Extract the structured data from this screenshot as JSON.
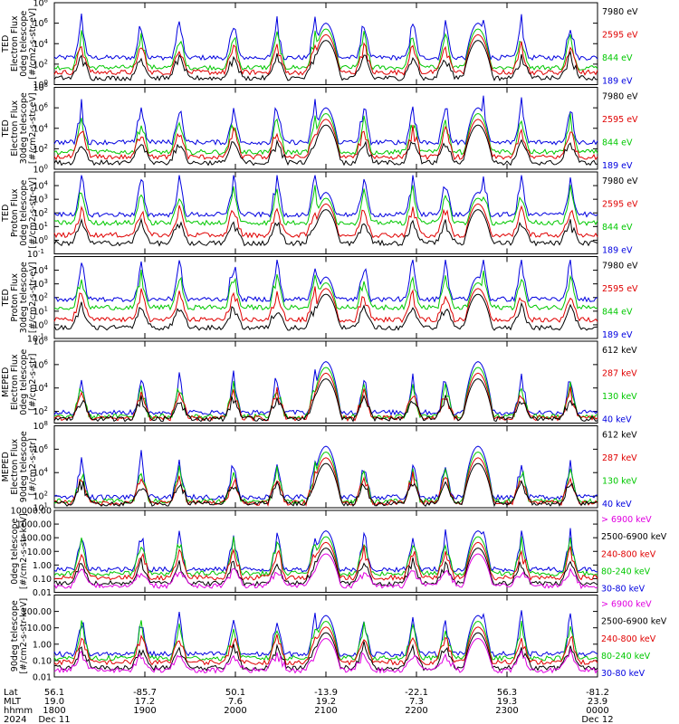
{
  "chart_data": [
    {
      "type": "line",
      "ylabel": [
        "TED",
        "Electron Flux",
        "0deg telescope",
        "[#/cm2-s-str-eV]"
      ],
      "yscale": "log",
      "ylim": [
        1,
        100000000
      ],
      "yticks": [
        "10^0",
        "10^2",
        "10^4",
        "10^6",
        "10^8"
      ],
      "series": [
        {
          "name": "7980 eV",
          "color": "#000000"
        },
        {
          "name": "2595 eV",
          "color": "#e00000"
        },
        {
          "name": "844 eV",
          "color": "#00c800"
        },
        {
          "name": "189 eV",
          "color": "#0000e0"
        }
      ]
    },
    {
      "type": "line",
      "ylabel": [
        "TED",
        "Electron Flux",
        "30deg telescope",
        "[#/cm2-s-str-eV]"
      ],
      "yscale": "log",
      "ylim": [
        1,
        100000000
      ],
      "yticks": [
        "10^0",
        "10^2",
        "10^4",
        "10^6",
        "10^8"
      ],
      "series": [
        {
          "name": "7980 eV",
          "color": "#000000"
        },
        {
          "name": "2595 eV",
          "color": "#e00000"
        },
        {
          "name": "844 eV",
          "color": "#00c800"
        },
        {
          "name": "189 eV",
          "color": "#0000e0"
        }
      ]
    },
    {
      "type": "line",
      "ylabel": [
        "TED",
        "Proton Flux",
        "0deg telescope",
        "[#/cm2-s-str-eV]"
      ],
      "yscale": "log",
      "ylim": [
        0.1,
        100000
      ],
      "yticks": [
        "10^-1",
        "10^0",
        "10^1",
        "10^2",
        "10^3",
        "10^4"
      ],
      "series": [
        {
          "name": "7980 eV",
          "color": "#000000"
        },
        {
          "name": "2595 eV",
          "color": "#e00000"
        },
        {
          "name": "844 eV",
          "color": "#00c800"
        },
        {
          "name": "189 eV",
          "color": "#0000e0"
        }
      ]
    },
    {
      "type": "line",
      "ylabel": [
        "TED",
        "Proton Flux",
        "30deg telescope",
        "[#/cm2-s-str-eV]"
      ],
      "yscale": "log",
      "ylim": [
        0.1,
        100000
      ],
      "yticks": [
        "10^-1",
        "10^0",
        "10^1",
        "10^2",
        "10^3",
        "10^4"
      ],
      "series": [
        {
          "name": "7980 eV",
          "color": "#000000"
        },
        {
          "name": "2595 eV",
          "color": "#e00000"
        },
        {
          "name": "844 eV",
          "color": "#00c800"
        },
        {
          "name": "189 eV",
          "color": "#0000e0"
        }
      ]
    },
    {
      "type": "line",
      "ylabel": [
        "MEPED",
        "Electron Flux",
        "0deg telescope",
        "[#/cm2-s-str]"
      ],
      "yscale": "log",
      "ylim": [
        10,
        100000000
      ],
      "yticks": [
        "10^2",
        "10^4",
        "10^6",
        "10^8"
      ],
      "series": [
        {
          "name": "612 keV",
          "color": "#000000"
        },
        {
          "name": "287 keV",
          "color": "#e00000"
        },
        {
          "name": "130 keV",
          "color": "#00c800"
        },
        {
          "name": "40 keV",
          "color": "#0000e0"
        }
      ]
    },
    {
      "type": "line",
      "ylabel": [
        "MEPED",
        "Electron Flux",
        "90deg telescope",
        "[#/cm2-s-str]"
      ],
      "yscale": "log",
      "ylim": [
        10,
        100000000
      ],
      "yticks": [
        "10^1",
        "10^2",
        "10^4",
        "10^6",
        "10^8"
      ],
      "series": [
        {
          "name": "612 keV",
          "color": "#000000"
        },
        {
          "name": "287 keV",
          "color": "#e00000"
        },
        {
          "name": "130 keV",
          "color": "#00c800"
        },
        {
          "name": "40 keV",
          "color": "#0000e0"
        }
      ]
    },
    {
      "type": "line",
      "ylabel": [
        "0deg telescope",
        "[#/cm2-s-str-keV]"
      ],
      "yscale": "log",
      "ylim": [
        0.01,
        10000
      ],
      "yticks": [
        "0.01",
        "0.10",
        "1.00",
        "10.00",
        "100.00",
        "1000.00",
        "10000.00"
      ],
      "series": [
        {
          "name": "> 6900 keV",
          "color": "#e000e0"
        },
        {
          "name": "2500-6900 keV",
          "color": "#000000"
        },
        {
          "name": "240-800 keV",
          "color": "#e00000"
        },
        {
          "name": "80-240 keV",
          "color": "#00c800"
        },
        {
          "name": "30-80 keV",
          "color": "#0000e0"
        }
      ]
    },
    {
      "type": "line",
      "ylabel": [
        "90deg telescope",
        "[#/cm2-s-str-keV]"
      ],
      "yscale": "log",
      "ylim": [
        0.01,
        1000
      ],
      "yticks": [
        "0.01",
        "0.10",
        "1.00",
        "10.00",
        "100.00"
      ],
      "series": [
        {
          "name": "> 6900 keV",
          "color": "#e000e0"
        },
        {
          "name": "2500-6900 keV",
          "color": "#000000"
        },
        {
          "name": "240-800 keV",
          "color": "#e00000"
        },
        {
          "name": "80-240 keV",
          "color": "#00c800"
        },
        {
          "name": "30-80 keV",
          "color": "#0000e0"
        }
      ]
    }
  ],
  "x_axis": {
    "row_labels": [
      "Lat",
      "MLT",
      "hhmm",
      "2024"
    ],
    "columns": [
      {
        "lat": "56.1",
        "mlt": "19.0",
        "hhmm": "1800",
        "date": "Dec 11"
      },
      {
        "lat": "-85.7",
        "mlt": "17.2",
        "hhmm": "1900",
        "date": ""
      },
      {
        "lat": "50.1",
        "mlt": "7.6",
        "hhmm": "2000",
        "date": ""
      },
      {
        "lat": "-13.9",
        "mlt": "19.2",
        "hhmm": "2100",
        "date": ""
      },
      {
        "lat": "-22.1",
        "mlt": "7.3",
        "hhmm": "2200",
        "date": ""
      },
      {
        "lat": "56.3",
        "mlt": "19.3",
        "hhmm": "2300",
        "date": ""
      },
      {
        "lat": "-81.2",
        "mlt": "23.9",
        "hhmm": "0000",
        "date": "Dec 12"
      }
    ]
  }
}
